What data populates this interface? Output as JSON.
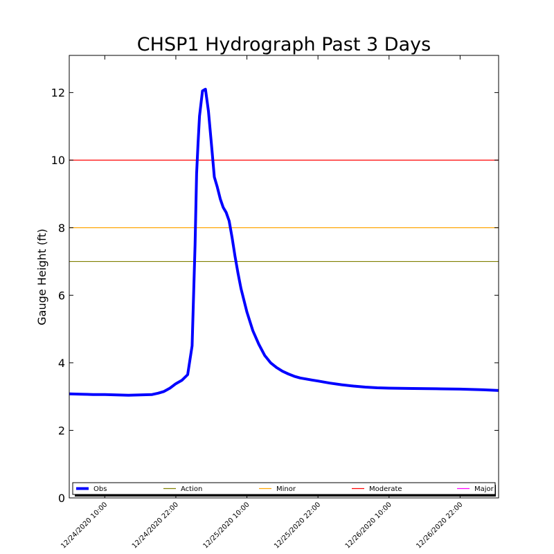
{
  "chart_data": {
    "type": "line",
    "title": "CHSP1 Hydrograph Past 3 Days",
    "ylabel": "Gauge Height (ft)",
    "xlabel": "",
    "ylim": [
      0,
      13.1
    ],
    "xlim": [
      "12/24/2020 04:00",
      "12/27/2020 04:30"
    ],
    "yticks": [
      0,
      2,
      4,
      6,
      8,
      10,
      12
    ],
    "xticks": [
      "12/24/2020 10:00",
      "12/24/2020 22:00",
      "12/25/2020 10:00",
      "12/25/2020 22:00",
      "12/26/2020 10:00",
      "12/26/2020 22:00"
    ],
    "grid": false,
    "legend": "bottom",
    "series": [
      {
        "name": "Obs",
        "color": "#0000ff",
        "x": [
          "12/24/2020 04:00",
          "12/24/2020 06:00",
          "12/24/2020 08:00",
          "12/24/2020 10:00",
          "12/24/2020 12:00",
          "12/24/2020 14:00",
          "12/24/2020 16:00",
          "12/24/2020 18:00",
          "12/24/2020 19:00",
          "12/24/2020 20:00",
          "12/24/2020 21:00",
          "12/24/2020 22:00",
          "12/24/2020 23:00",
          "12/25/2020 00:00",
          "12/25/2020 00:45",
          "12/25/2020 01:15",
          "12/25/2020 01:30",
          "12/25/2020 01:45",
          "12/25/2020 02:00",
          "12/25/2020 02:30",
          "12/25/2020 03:00",
          "12/25/2020 03:30",
          "12/25/2020 04:00",
          "12/25/2020 04:30",
          "12/25/2020 05:00",
          "12/25/2020 05:30",
          "12/25/2020 06:00",
          "12/25/2020 06:30",
          "12/25/2020 07:00",
          "12/25/2020 07:30",
          "12/25/2020 08:00",
          "12/25/2020 08:30",
          "12/25/2020 09:00",
          "12/25/2020 10:00",
          "12/25/2020 11:00",
          "12/25/2020 12:00",
          "12/25/2020 13:00",
          "12/25/2020 14:00",
          "12/25/2020 15:00",
          "12/25/2020 16:00",
          "12/25/2020 17:00",
          "12/25/2020 18:00",
          "12/25/2020 19:00",
          "12/25/2020 20:00",
          "12/25/2020 21:00",
          "12/25/2020 22:00",
          "12/25/2020 23:00",
          "12/26/2020 00:00",
          "12/26/2020 02:00",
          "12/26/2020 04:00",
          "12/26/2020 06:00",
          "12/26/2020 08:00",
          "12/26/2020 10:00",
          "12/26/2020 14:00",
          "12/26/2020 18:00",
          "12/26/2020 22:00",
          "12/27/2020 02:00",
          "12/27/2020 04:30"
        ],
        "values": [
          3.08,
          3.07,
          3.06,
          3.06,
          3.05,
          3.04,
          3.05,
          3.06,
          3.1,
          3.15,
          3.25,
          3.38,
          3.48,
          3.65,
          4.5,
          7.5,
          9.6,
          10.5,
          11.3,
          12.05,
          12.1,
          11.45,
          10.5,
          9.5,
          9.2,
          8.85,
          8.6,
          8.45,
          8.2,
          7.7,
          7.15,
          6.65,
          6.2,
          5.5,
          4.95,
          4.55,
          4.22,
          4.0,
          3.86,
          3.75,
          3.67,
          3.6,
          3.55,
          3.52,
          3.49,
          3.46,
          3.43,
          3.4,
          3.35,
          3.31,
          3.28,
          3.26,
          3.25,
          3.24,
          3.23,
          3.22,
          3.2,
          3.18
        ]
      },
      {
        "name": "Action",
        "color": "#808000",
        "value": 7
      },
      {
        "name": "Minor",
        "color": "#ffa500",
        "value": 8
      },
      {
        "name": "Moderate",
        "color": "#ff0000",
        "value": 10
      },
      {
        "name": "Major",
        "color": "#ff00ff",
        "value": null
      }
    ]
  }
}
